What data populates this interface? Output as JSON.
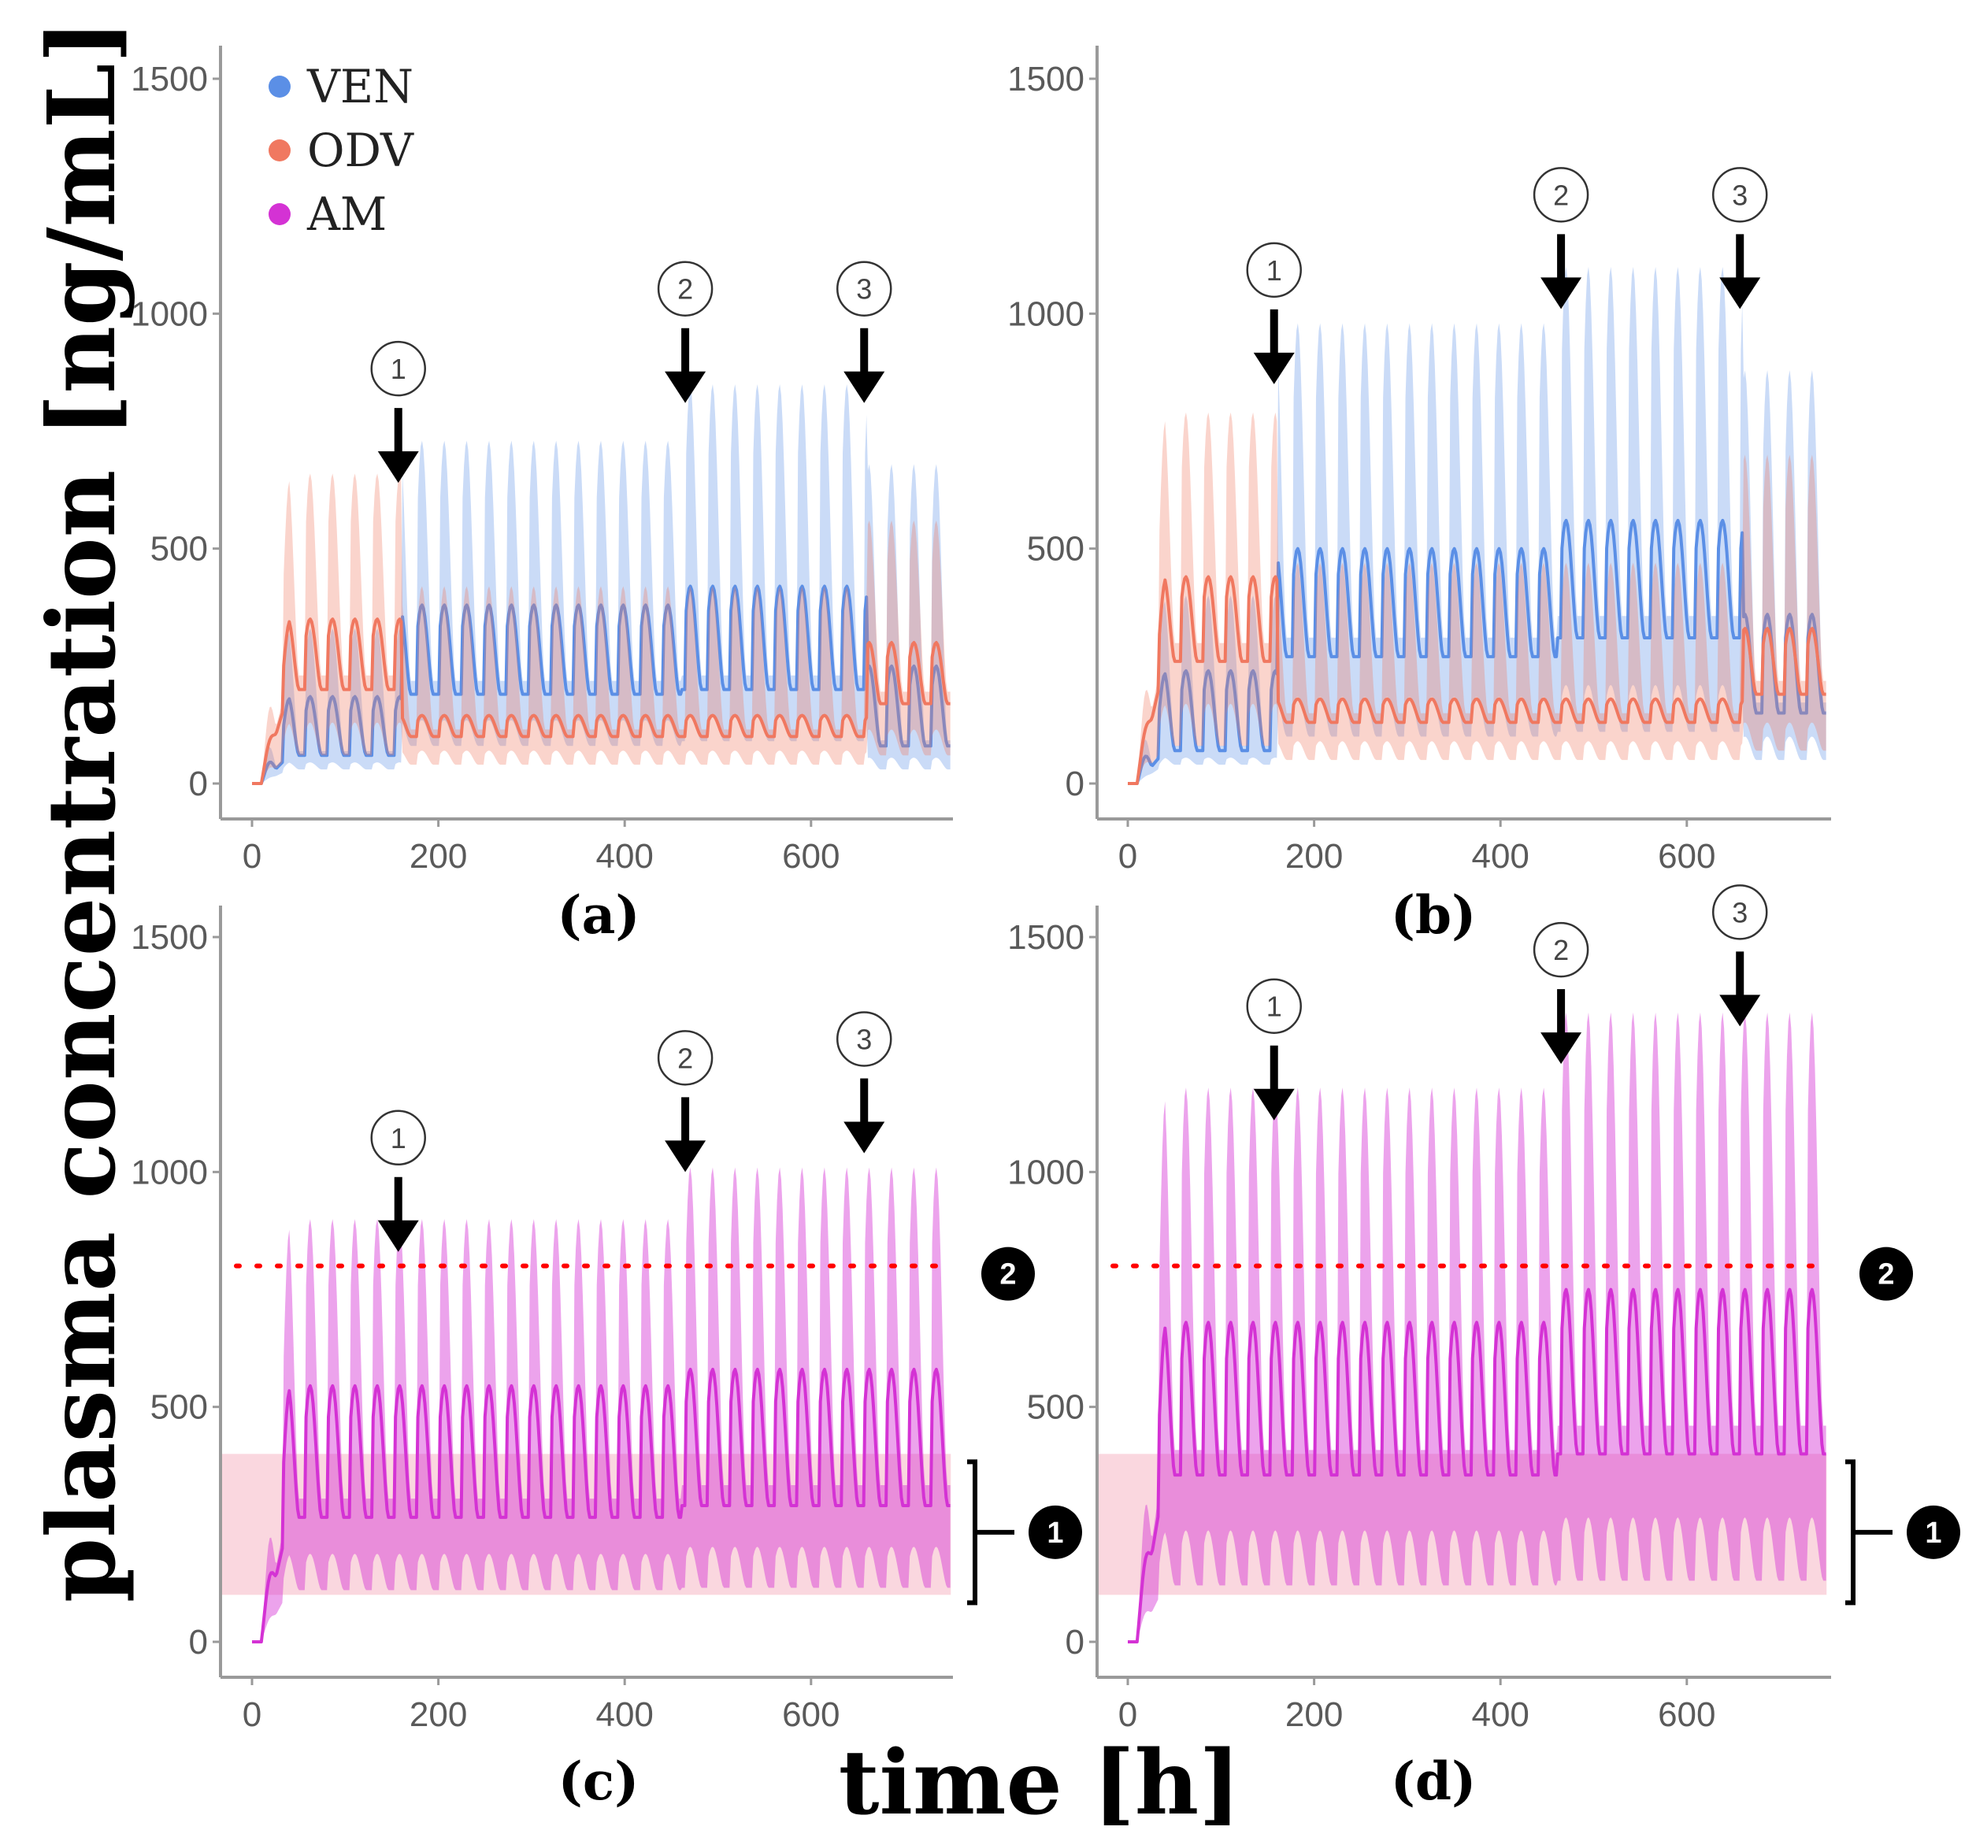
{
  "figure": {
    "ylabel": "plasma concentration [ng/mL]",
    "xlabel": "time [h]"
  },
  "legend": [
    {
      "label": "VEN",
      "color": "#5b8fe6"
    },
    {
      "label": "ODV",
      "color": "#f07860"
    },
    {
      "label": "AM",
      "color": "#d432d4"
    }
  ],
  "therapeutic_range": {
    "lower": 100,
    "upper": 400,
    "marker": "1",
    "color": "#f9d3dc"
  },
  "alert_level": {
    "value": 800,
    "marker": "2",
    "color": "#ff0000"
  },
  "chart_data": [
    {
      "panel": "(a)",
      "type": "line",
      "x_ticks": [
        0,
        200,
        400,
        600
      ],
      "y_ticks": [
        0,
        500,
        1000,
        1500
      ],
      "xlim": [
        0,
        750
      ],
      "ylim": [
        0,
        1500
      ],
      "dosing_interval_h": 24,
      "series": [
        {
          "name": "VEN",
          "segments": [
            {
              "from": 10,
              "to": 160,
              "median_peak": 185,
              "median_trough": 60,
              "upper_peak": 330,
              "lower": 30
            },
            {
              "from": 160,
              "to": 460,
              "median_peak": 380,
              "median_trough": 190,
              "upper_peak": 730,
              "lower": 80
            },
            {
              "from": 460,
              "to": 660,
              "median_peak": 420,
              "median_trough": 200,
              "upper_peak": 850,
              "lower": 90
            },
            {
              "from": 660,
              "to": 750,
              "median_peak": 250,
              "median_trough": 80,
              "upper_peak": 680,
              "lower": 30
            }
          ]
        },
        {
          "name": "ODV",
          "segments": [
            {
              "from": 10,
              "to": 160,
              "median_peak": 350,
              "median_trough": 200,
              "upper_peak": 660,
              "lower": 60
            },
            {
              "from": 160,
              "to": 660,
              "median_peak": 145,
              "median_trough": 100,
              "upper_peak": 420,
              "lower": 40
            },
            {
              "from": 660,
              "to": 750,
              "median_peak": 300,
              "median_trough": 170,
              "upper_peak": 560,
              "lower": 60
            }
          ]
        }
      ],
      "arrows": [
        {
          "label": "1",
          "t": 157,
          "y": 640
        },
        {
          "label": "2",
          "t": 465,
          "y": 810
        },
        {
          "label": "3",
          "t": 657,
          "y": 810
        }
      ]
    },
    {
      "panel": "(b)",
      "type": "line",
      "x_ticks": [
        0,
        200,
        400,
        600
      ],
      "y_ticks": [
        0,
        500,
        1000,
        1500
      ],
      "xlim": [
        0,
        750
      ],
      "ylim": [
        0,
        1500
      ],
      "dosing_interval_h": 24,
      "series": [
        {
          "name": "VEN",
          "segments": [
            {
              "from": 10,
              "to": 160,
              "median_peak": 240,
              "median_trough": 70,
              "upper_peak": 400,
              "lower": 40
            },
            {
              "from": 160,
              "to": 460,
              "median_peak": 500,
              "median_trough": 270,
              "upper_peak": 980,
              "lower": 100
            },
            {
              "from": 460,
              "to": 660,
              "median_peak": 560,
              "median_trough": 310,
              "upper_peak": 1100,
              "lower": 110
            },
            {
              "from": 660,
              "to": 750,
              "median_peak": 360,
              "median_trough": 150,
              "upper_peak": 880,
              "lower": 50
            }
          ]
        },
        {
          "name": "ODV",
          "segments": [
            {
              "from": 10,
              "to": 160,
              "median_peak": 440,
              "median_trough": 260,
              "upper_peak": 790,
              "lower": 80
            },
            {
              "from": 160,
              "to": 660,
              "median_peak": 180,
              "median_trough": 130,
              "upper_peak": 470,
              "lower": 50
            },
            {
              "from": 660,
              "to": 750,
              "median_peak": 330,
              "median_trough": 190,
              "upper_peak": 700,
              "lower": 70
            }
          ]
        }
      ],
      "arrows": [
        {
          "label": "1",
          "t": 157,
          "y": 850
        },
        {
          "label": "2",
          "t": 465,
          "y": 1010
        },
        {
          "label": "3",
          "t": 657,
          "y": 1010
        }
      ]
    },
    {
      "panel": "(c)",
      "type": "line",
      "x_ticks": [
        0,
        200,
        400,
        600
      ],
      "y_ticks": [
        0,
        500,
        1000,
        1500
      ],
      "xlim": [
        0,
        750
      ],
      "ylim": [
        0,
        1500
      ],
      "dosing_interval_h": 24,
      "series": [
        {
          "name": "AM",
          "segments": [
            {
              "from": 10,
              "to": 460,
              "median_peak": 545,
              "median_trough": 265,
              "upper_peak": 900,
              "lower": 110
            },
            {
              "from": 460,
              "to": 750,
              "median_peak": 580,
              "median_trough": 290,
              "upper_peak": 1010,
              "lower": 115
            }
          ]
        }
      ],
      "arrows": [
        {
          "label": "1",
          "t": 157,
          "y": 830
        },
        {
          "label": "2",
          "t": 465,
          "y": 1000
        },
        {
          "label": "3",
          "t": 657,
          "y": 1040
        }
      ]
    },
    {
      "panel": "(d)",
      "type": "line",
      "x_ticks": [
        0,
        200,
        400,
        600
      ],
      "y_ticks": [
        0,
        500,
        1000,
        1500
      ],
      "xlim": [
        0,
        750
      ],
      "ylim": [
        0,
        1500
      ],
      "dosing_interval_h": 24,
      "series": [
        {
          "name": "AM",
          "segments": [
            {
              "from": 10,
              "to": 460,
              "median_peak": 680,
              "median_trough": 355,
              "upper_peak": 1180,
              "lower": 120
            },
            {
              "from": 460,
              "to": 750,
              "median_peak": 750,
              "median_trough": 400,
              "upper_peak": 1340,
              "lower": 130
            }
          ]
        }
      ],
      "arrows": [
        {
          "label": "1",
          "t": 157,
          "y": 1110
        },
        {
          "label": "2",
          "t": 465,
          "y": 1230
        },
        {
          "label": "3",
          "t": 657,
          "y": 1310
        }
      ]
    }
  ]
}
